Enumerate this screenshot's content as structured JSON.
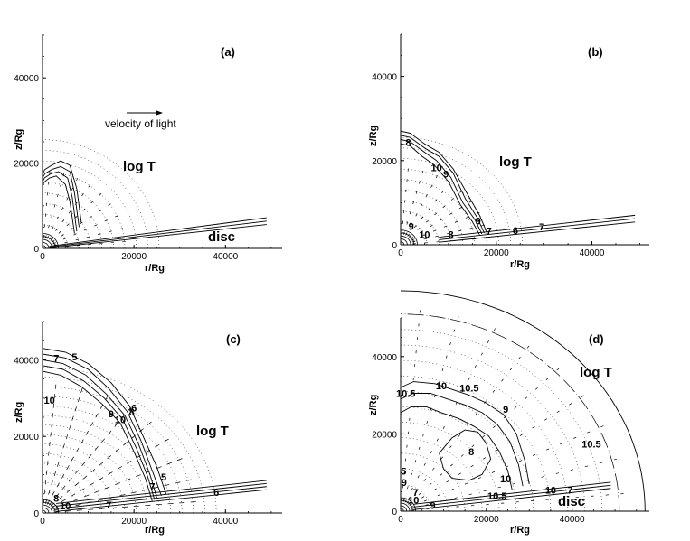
{
  "chart_data": [
    {
      "type": "contour",
      "panel_label": "(a)",
      "xlabel": "r/Rg",
      "ylabel": "z/Rg",
      "xlim": [
        0,
        52000
      ],
      "ylim": [
        0,
        50000
      ],
      "xticks": [
        "0",
        "20000",
        "40000"
      ],
      "yticks": [
        "0",
        "20000",
        "40000"
      ],
      "annotations": [
        "log T",
        "disc",
        "velocity of light"
      ],
      "contour_labels": [],
      "contours": [
        {
          "r": [
            0,
            500,
            2000,
            4000,
            6000,
            7500,
            8500
          ],
          "z": [
            17500,
            18500,
            19500,
            20500,
            19500,
            14000,
            6000
          ]
        },
        {
          "r": [
            0,
            500,
            2000,
            4000,
            6000,
            7000,
            8000
          ],
          "z": [
            16500,
            17500,
            18500,
            19200,
            18000,
            13000,
            5000
          ]
        },
        {
          "r": [
            0,
            400,
            1800,
            3500,
            5500,
            6500,
            7500
          ],
          "z": [
            15500,
            16500,
            17500,
            18000,
            16500,
            12000,
            4000
          ]
        },
        {
          "r": [
            0,
            300,
            1500,
            3000,
            5000,
            6000,
            7000
          ],
          "z": [
            14500,
            15500,
            16500,
            17000,
            15000,
            11000,
            3500
          ]
        }
      ],
      "disc_lines": [
        {
          "r": [
            1500,
            49000
          ],
          "z": [
            500,
            7200
          ]
        },
        {
          "r": [
            1500,
            49000
          ],
          "z": [
            300,
            6400
          ]
        },
        {
          "r": [
            1500,
            49000
          ],
          "z": [
            100,
            5600
          ]
        }
      ]
    },
    {
      "type": "contour",
      "panel_label": "(b)",
      "xlabel": "r/Rg",
      "ylabel": "z/Rg",
      "xlim": [
        0,
        52000
      ],
      "ylim": [
        0,
        50000
      ],
      "xticks": [
        "0",
        "20000",
        "40000"
      ],
      "yticks": [
        "0",
        "20000",
        "40000"
      ],
      "annotations": [
        "log T"
      ],
      "contour_labels": [
        {
          "text": "8",
          "r": 1600,
          "z": 23500
        },
        {
          "text": "10",
          "r": 7500,
          "z": 17500
        },
        {
          "text": "9",
          "r": 9500,
          "z": 16000
        },
        {
          "text": "9",
          "r": 16200,
          "z": 4800
        },
        {
          "text": "10",
          "r": 5000,
          "z": 1600
        },
        {
          "text": "8",
          "r": 10500,
          "z": 1600
        },
        {
          "text": "7",
          "r": 18500,
          "z": 2500
        },
        {
          "text": "6",
          "r": 24000,
          "z": 2600
        },
        {
          "text": "7",
          "r": 29500,
          "z": 3400
        },
        {
          "text": "9",
          "r": 2200,
          "z": 3500
        }
      ],
      "contours": [
        {
          "r": [
            0,
            2000,
            5000,
            8000,
            11000,
            14000,
            16500,
            18000
          ],
          "z": [
            27000,
            26500,
            24000,
            22000,
            18000,
            12000,
            7000,
            3000
          ]
        },
        {
          "r": [
            0,
            2000,
            5000,
            8000,
            11000,
            13500,
            16000,
            17500
          ],
          "z": [
            26000,
            25500,
            23000,
            21000,
            17000,
            11000,
            6500,
            2800
          ]
        },
        {
          "r": [
            0,
            2000,
            5000,
            7500,
            10500,
            13000,
            15500,
            17000
          ],
          "z": [
            25000,
            24500,
            22000,
            20000,
            16000,
            10000,
            6000,
            2600
          ]
        },
        {
          "r": [
            0,
            2000,
            4500,
            7000,
            10000,
            12500,
            15000,
            16500
          ],
          "z": [
            24000,
            23500,
            21000,
            19000,
            15000,
            9500,
            5500,
            2400
          ]
        }
      ],
      "disc_lines": [
        {
          "r": [
            8000,
            49000
          ],
          "z": [
            1800,
            7000
          ]
        },
        {
          "r": [
            8000,
            49000
          ],
          "z": [
            1200,
            6200
          ]
        },
        {
          "r": [
            8000,
            49000
          ],
          "z": [
            600,
            5400
          ]
        }
      ]
    },
    {
      "type": "contour",
      "panel_label": "(c)",
      "xlabel": "r/Rg",
      "ylabel": "z/Rg",
      "xlim": [
        0,
        52000
      ],
      "ylim": [
        0,
        50000
      ],
      "xticks": [
        "0",
        "20000",
        "40000"
      ],
      "yticks": [
        "0",
        "20000",
        "40000"
      ],
      "annotations": [
        "log T"
      ],
      "contour_labels": [
        {
          "text": "7",
          "r": 3000,
          "z": 39500
        },
        {
          "text": "5",
          "r": 7000,
          "z": 39800
        },
        {
          "text": "10",
          "r": 1500,
          "z": 28500
        },
        {
          "text": "9",
          "r": 15000,
          "z": 25000
        },
        {
          "text": "10",
          "r": 17000,
          "z": 23500
        },
        {
          "text": "8",
          "r": 19500,
          "z": 25500
        },
        {
          "text": "6",
          "r": 20000,
          "z": 26500
        },
        {
          "text": "5",
          "r": 26500,
          "z": 8500
        },
        {
          "text": "7",
          "r": 24000,
          "z": 6000
        },
        {
          "text": "6",
          "r": 38000,
          "z": 4500
        },
        {
          "text": "10",
          "r": 5000,
          "z": 1000
        },
        {
          "text": "8",
          "r": 3000,
          "z": 3000
        },
        {
          "text": "7",
          "r": 14500,
          "z": 1200
        }
      ],
      "contours": [
        {
          "r": [
            0,
            5000,
            10000,
            15000,
            19000,
            22000,
            25000,
            27000
          ],
          "z": [
            43000,
            42000,
            39000,
            34000,
            28000,
            20000,
            12000,
            5000
          ]
        },
        {
          "r": [
            0,
            5000,
            10000,
            14500,
            18500,
            21500,
            24000,
            26000
          ],
          "z": [
            41500,
            40500,
            37500,
            32500,
            26500,
            19000,
            11000,
            4500
          ]
        },
        {
          "r": [
            0,
            4500,
            9500,
            14000,
            18000,
            21000,
            23500,
            25000
          ],
          "z": [
            40000,
            39000,
            36000,
            31000,
            25500,
            18000,
            10000,
            4000
          ]
        },
        {
          "r": [
            0,
            4500,
            9000,
            13500,
            17500,
            20500,
            23000,
            24500
          ],
          "z": [
            38500,
            37500,
            34500,
            30000,
            24500,
            17000,
            9500,
            3500
          ]
        },
        {
          "r": [
            0,
            4000,
            8500,
            13000,
            17000,
            20000,
            22500,
            24000
          ],
          "z": [
            37000,
            36000,
            33000,
            28500,
            23500,
            16000,
            9000,
            3000
          ]
        }
      ],
      "disc_lines": [
        {
          "r": [
            3000,
            49000
          ],
          "z": [
            2500,
            8500
          ]
        },
        {
          "r": [
            3000,
            49000
          ],
          "z": [
            1800,
            7700
          ]
        },
        {
          "r": [
            3000,
            49000
          ],
          "z": [
            1100,
            6900
          ]
        },
        {
          "r": [
            3000,
            49000
          ],
          "z": [
            400,
            6100
          ]
        }
      ]
    },
    {
      "type": "contour",
      "panel_label": "(d)",
      "xlabel": "r/Rg",
      "ylabel": "z/Rg",
      "xlim": [
        0,
        58000
      ],
      "ylim": [
        0,
        50000
      ],
      "xticks": [
        "0",
        "20000",
        "40000"
      ],
      "yticks": [
        "0",
        "20000",
        "40000"
      ],
      "annotations": [
        "log T",
        "disc"
      ],
      "contour_labels": [
        {
          "text": "10",
          "r": 9500,
          "z": 31500
        },
        {
          "text": "10.5",
          "r": 16000,
          "z": 31000
        },
        {
          "text": "10.5",
          "r": 1200,
          "z": 29500
        },
        {
          "text": "9",
          "r": 24500,
          "z": 25500
        },
        {
          "text": "8",
          "r": 16500,
          "z": 14500
        },
        {
          "text": "10.5",
          "r": 44500,
          "z": 16500
        },
        {
          "text": "10",
          "r": 24500,
          "z": 7500
        },
        {
          "text": "10.5",
          "r": 22500,
          "z": 3000
        },
        {
          "text": "10",
          "r": 35000,
          "z": 4500
        },
        {
          "text": "7",
          "r": 39500,
          "z": 4500
        },
        {
          "text": "9",
          "r": 7500,
          "z": 600
        },
        {
          "text": "10",
          "r": 3000,
          "z": 2000
        },
        {
          "text": "7",
          "r": 3500,
          "z": 4000
        },
        {
          "text": "9",
          "r": 800,
          "z": 6500
        },
        {
          "text": "5",
          "r": 700,
          "z": 9500
        }
      ],
      "contours": [
        {
          "r": [
            0,
            3000,
            8000,
            12000,
            16000,
            20000,
            24000,
            27000,
            29000,
            30000
          ],
          "z": [
            32000,
            33500,
            33000,
            31500,
            30000,
            28000,
            25000,
            20000,
            13000,
            7000
          ]
        },
        {
          "r": [
            0,
            3000,
            7000,
            11000,
            15000,
            19000,
            22500,
            25500,
            27500,
            28500
          ],
          "z": [
            29000,
            30500,
            30500,
            29000,
            27500,
            25500,
            22500,
            18000,
            12000,
            6500
          ]
        },
        {
          "r": [
            0,
            2500,
            6000,
            9500,
            13500,
            17000,
            20500,
            23000,
            25000,
            26000
          ],
          "z": [
            25500,
            27000,
            27000,
            25500,
            24000,
            22000,
            19500,
            15500,
            10500,
            5500
          ]
        },
        {
          "r": [
            9000,
            12000,
            15000,
            18000,
            20000,
            21000,
            19000,
            16000,
            12000,
            10000,
            9000
          ],
          "z": [
            15000,
            19000,
            21000,
            20500,
            17500,
            13500,
            9500,
            8000,
            8500,
            11000,
            15000
          ]
        }
      ],
      "disc_lines": [
        {
          "r": [
            3000,
            49000
          ],
          "z": [
            1800,
            7500
          ]
        },
        {
          "r": [
            3000,
            49000
          ],
          "z": [
            1100,
            6700
          ]
        },
        {
          "r": [
            3000,
            49000
          ],
          "z": [
            400,
            5900
          ]
        }
      ]
    }
  ]
}
